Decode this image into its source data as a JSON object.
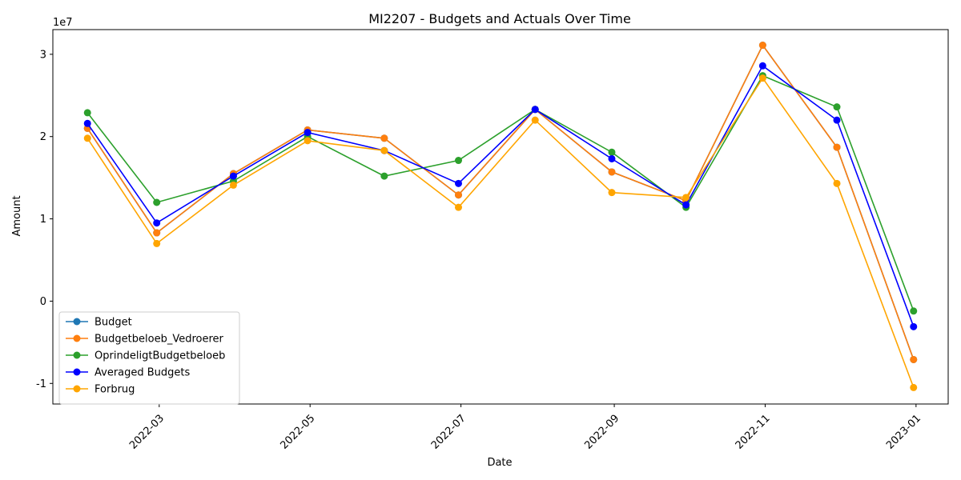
{
  "chart_data": {
    "type": "line",
    "title": "MI2207 - Budgets and Actuals Over Time",
    "xlabel": "Date",
    "ylabel": "Amount",
    "y_scale_label": "1e7",
    "x": [
      "2022-01-31",
      "2022-02-28",
      "2022-03-31",
      "2022-04-30",
      "2022-05-31",
      "2022-06-30",
      "2022-07-31",
      "2022-08-31",
      "2022-09-30",
      "2022-10-31",
      "2022-11-30",
      "2022-12-31"
    ],
    "x_ticks": [
      "2022-03",
      "2022-05",
      "2022-07",
      "2022-09",
      "2022-11",
      "2023-01"
    ],
    "y_ticks": [
      -1,
      0,
      1,
      2,
      3
    ],
    "ylim": [
      -1.25,
      3.3
    ],
    "xlim": [
      "2022-01-17",
      "2023-01-14"
    ],
    "legend_position": "lower left",
    "series": [
      {
        "name": "Budget",
        "color": "#1f77b4",
        "marker": "circle",
        "values": [
          2.1,
          0.83,
          1.55,
          2.08,
          1.98,
          1.29,
          2.33,
          1.57,
          1.22,
          3.11,
          1.87,
          -0.71
        ]
      },
      {
        "name": "Budgetbeloeb_Vedroerer",
        "color": "#ff7f0e",
        "marker": "circle",
        "values": [
          2.1,
          0.83,
          1.55,
          2.08,
          1.98,
          1.29,
          2.33,
          1.57,
          1.22,
          3.11,
          1.87,
          -0.71
        ]
      },
      {
        "name": "OprindeligtBudgetbeloeb",
        "color": "#2ca02c",
        "marker": "circle",
        "values": [
          2.29,
          1.2,
          1.46,
          2.0,
          1.52,
          1.71,
          2.33,
          1.81,
          1.14,
          2.74,
          2.36,
          -0.12
        ]
      },
      {
        "name": "Averaged Budgets",
        "color": "#0000ff",
        "marker": "circle",
        "values": [
          2.16,
          0.95,
          1.52,
          2.05,
          1.83,
          1.43,
          2.33,
          1.73,
          1.17,
          2.86,
          2.2,
          -0.31
        ]
      },
      {
        "name": "Forbrug",
        "color": "#ffa500",
        "marker": "circle",
        "values": [
          1.98,
          0.7,
          1.41,
          1.95,
          1.83,
          1.14,
          2.2,
          1.32,
          1.26,
          2.71,
          1.43,
          -1.05
        ]
      }
    ]
  }
}
